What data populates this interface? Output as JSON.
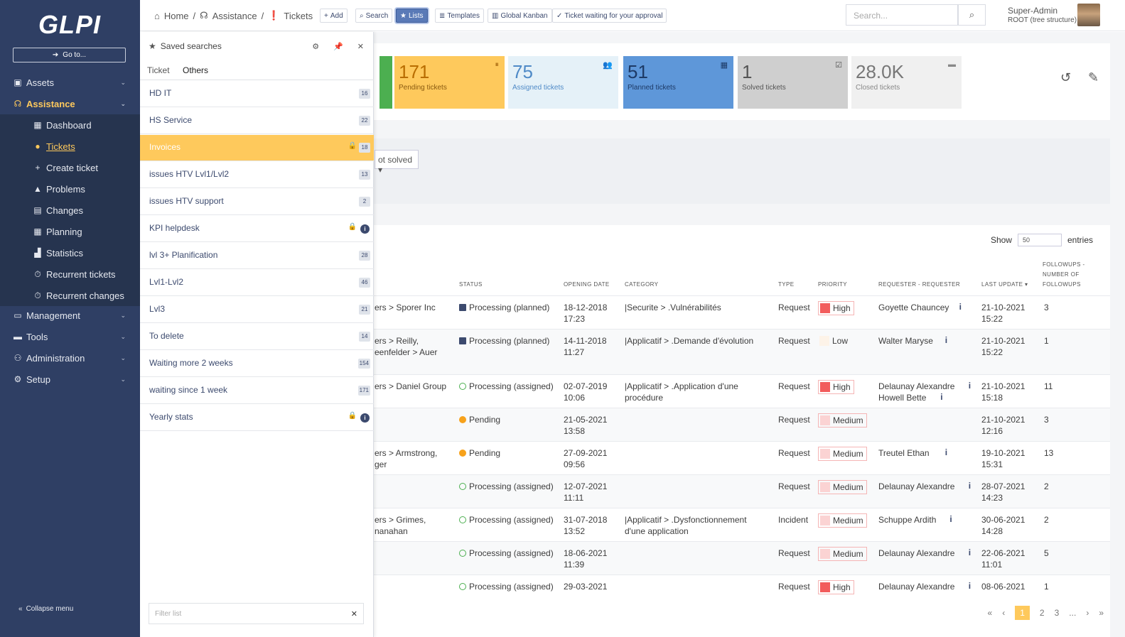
{
  "brand": "GLPI",
  "sidebar": {
    "goto": "Go to...",
    "items": [
      {
        "label": "Assets",
        "icon": "cubes-icon"
      },
      {
        "label": "Assistance",
        "icon": "headset-icon"
      },
      {
        "label": "Dashboard",
        "icon": "dashboard-icon"
      },
      {
        "label": "Tickets",
        "icon": "exclamation-icon"
      },
      {
        "label": "Create ticket",
        "icon": "plus-icon"
      },
      {
        "label": "Problems",
        "icon": "warning-icon"
      },
      {
        "label": "Changes",
        "icon": "clipboard-icon"
      },
      {
        "label": "Planning",
        "icon": "calendar-icon"
      },
      {
        "label": "Statistics",
        "icon": "chart-icon"
      },
      {
        "label": "Recurrent tickets",
        "icon": "stopwatch-icon"
      },
      {
        "label": "Recurrent changes",
        "icon": "stopwatch-icon"
      },
      {
        "label": "Management",
        "icon": "wallet-icon"
      },
      {
        "label": "Tools",
        "icon": "briefcase-icon"
      },
      {
        "label": "Administration",
        "icon": "users-cog-icon"
      },
      {
        "label": "Setup",
        "icon": "cogs-icon"
      }
    ],
    "collapse": "Collapse menu"
  },
  "header": {
    "breadcrumb": [
      "Home",
      "Assistance",
      "Tickets"
    ],
    "toolbar": {
      "add": "Add",
      "search": "Search",
      "lists": "Lists",
      "templates": "Templates",
      "kanban": "Global Kanban",
      "approval": "Ticket waiting for your approval"
    },
    "search_placeholder": "Search...",
    "user": "Super-Admin",
    "entity": "ROOT (tree structure)"
  },
  "cards": [
    {
      "value": "171",
      "label": "Pending tickets",
      "color": "#fec95c"
    },
    {
      "value": "75",
      "label": "Assigned tickets",
      "color": "#e5f1f8"
    },
    {
      "value": "51",
      "label": "Planned tickets",
      "color": "#5e97d9"
    },
    {
      "value": "1",
      "label": "Solved tickets",
      "color": "#cfcfcf"
    },
    {
      "value": "28.0K",
      "label": "Closed tickets",
      "color": "#f0f0f0"
    }
  ],
  "criteria": {
    "status_value": "ot solved"
  },
  "list": {
    "show": "Show",
    "entries_value": "50",
    "entries": "entries",
    "headers": {
      "status": "STATUS",
      "opening": "OPENING DATE",
      "category": "CATEGORY",
      "type": "TYPE",
      "priority": "PRIORITY",
      "requester": "REQUESTER - REQUESTER",
      "last_update": "LAST UPDATE",
      "followups": "FOLLOWUPS - NUMBER OF FOLLOWUPS"
    },
    "rows": [
      {
        "entity": "ers > Sporer Inc",
        "entity2": "",
        "status": "Processing (planned)",
        "date": "18-12-2018",
        "time": "17:23",
        "category": "|Securite > .Vulnérabilités",
        "category2": "",
        "type": "Request",
        "priority": "High",
        "requester": "Goyette Chauncey",
        "requester2": "",
        "upd_date": "21-10-2021",
        "upd_time": "15:22",
        "followups": "3"
      },
      {
        "entity": "ers > Reilly,",
        "entity2": "eenfelder > Auer",
        "status": "Processing (planned)",
        "date": "14-11-2018",
        "time": "11:27",
        "category": "|Applicatif > .Demande d'évolution",
        "category2": "",
        "type": "Request",
        "priority": "Low",
        "requester": "Walter Maryse",
        "requester2": "",
        "upd_date": "21-10-2021",
        "upd_time": "15:22",
        "followups": "1"
      },
      {
        "entity": "ers > Daniel Group",
        "entity2": "",
        "status": "Processing (assigned)",
        "date": "02-07-2019",
        "time": "10:06",
        "category": "|Applicatif > .Application d'une",
        "category2": "procédure",
        "type": "Request",
        "priority": "High",
        "requester": "Delaunay Alexandre",
        "requester2": "Howell Bette",
        "upd_date": "21-10-2021",
        "upd_time": "15:18",
        "followups": "11"
      },
      {
        "entity": "",
        "entity2": "",
        "status": "Pending",
        "date": "21-05-2021",
        "time": "13:58",
        "category": "",
        "category2": "",
        "type": "Request",
        "priority": "Medium",
        "requester": "",
        "requester2": "",
        "upd_date": "21-10-2021",
        "upd_time": "12:16",
        "followups": "3"
      },
      {
        "entity": "ers > Armstrong,",
        "entity2": "ger",
        "status": "Pending",
        "date": "27-09-2021",
        "time": "09:56",
        "category": "",
        "category2": "",
        "type": "Request",
        "priority": "Medium",
        "requester": "Treutel Ethan",
        "requester2": "",
        "upd_date": "19-10-2021",
        "upd_time": "15:31",
        "followups": "13"
      },
      {
        "entity": "",
        "entity2": "",
        "status": "Processing (assigned)",
        "date": "12-07-2021",
        "time": "11:11",
        "category": "",
        "category2": "",
        "type": "Request",
        "priority": "Medium",
        "requester": "Delaunay Alexandre",
        "requester2": "",
        "upd_date": "28-07-2021",
        "upd_time": "14:23",
        "followups": "2"
      },
      {
        "entity": "ers > Grimes,",
        "entity2": "nanahan",
        "status": "Processing (assigned)",
        "date": "31-07-2018",
        "time": "13:52",
        "category": "|Applicatif > .Dysfonctionnement",
        "category2": "d'une application",
        "type": "Incident",
        "priority": "Medium",
        "requester": "Schuppe Ardith",
        "requester2": "",
        "upd_date": "30-06-2021",
        "upd_time": "14:28",
        "followups": "2"
      },
      {
        "entity": "",
        "entity2": "",
        "status": "Processing (assigned)",
        "date": "18-06-2021",
        "time": "11:39",
        "category": "",
        "category2": "",
        "type": "Request",
        "priority": "Medium",
        "requester": "Delaunay Alexandre",
        "requester2": "",
        "upd_date": "22-06-2021",
        "upd_time": "11:01",
        "followups": "5"
      },
      {
        "entity": "",
        "entity2": "",
        "status": "Processing (assigned)",
        "date": "29-03-2021",
        "time": "",
        "category": "",
        "category2": "",
        "type": "Request",
        "priority": "High",
        "requester": "Delaunay Alexandre",
        "requester2": "",
        "upd_date": "08-06-2021",
        "upd_time": "",
        "followups": "1"
      }
    ],
    "pager": [
      "1",
      "2",
      "3",
      "..."
    ]
  },
  "saved": {
    "title": "Saved searches",
    "tabs": [
      "Ticket",
      "Others"
    ],
    "items": [
      {
        "label": "HD IT",
        "count": "16",
        "lock": false
      },
      {
        "label": "HS Service",
        "count": "22",
        "lock": false
      },
      {
        "label": "Invoices",
        "count": "18",
        "lock": true
      },
      {
        "label": "issues HTV Lvl1/Lvl2",
        "count": "13",
        "lock": false
      },
      {
        "label": "issues HTV support",
        "count": "2",
        "lock": false
      },
      {
        "label": "KPI helpdesk",
        "count": "",
        "lock": true
      },
      {
        "label": "lvl 3+ Planification",
        "count": "28",
        "lock": false
      },
      {
        "label": "Lvl1-Lvl2",
        "count": "46",
        "lock": false
      },
      {
        "label": "Lvl3",
        "count": "21",
        "lock": false
      },
      {
        "label": "To delete",
        "count": "14",
        "lock": false
      },
      {
        "label": "Waiting more 2 weeks",
        "count": "154",
        "lock": false
      },
      {
        "label": "waiting since 1 week",
        "count": "171",
        "lock": false
      },
      {
        "label": "Yearly stats",
        "count": "",
        "lock": true
      }
    ],
    "filter_placeholder": "Filter list"
  }
}
